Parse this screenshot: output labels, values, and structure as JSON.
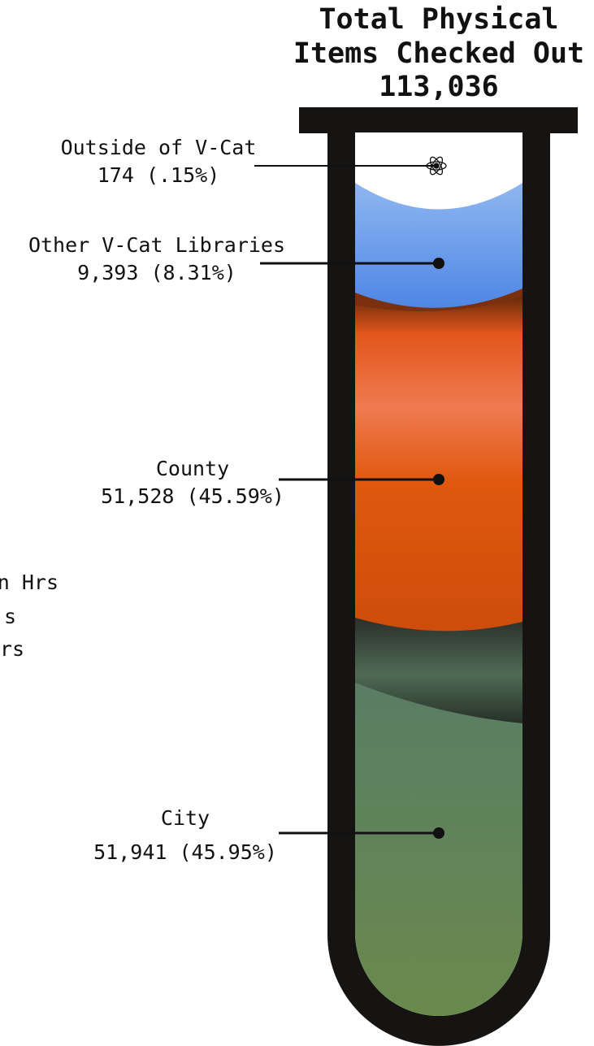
{
  "title": {
    "lines": [
      "Total Physical",
      "Items Checked Out",
      "113,036"
    ]
  },
  "segments": [
    {
      "name": "Outside of V-Cat",
      "value": "174 (.15%)"
    },
    {
      "name": "Other V-Cat Libraries",
      "value": "9,393 (8.31%)"
    },
    {
      "name": "County",
      "value": "51,528 (45.59%)"
    },
    {
      "name": "City",
      "value": "51,941 (45.95%)"
    }
  ],
  "fragments": [
    "n Hrs",
    "s",
    "rs"
  ]
}
